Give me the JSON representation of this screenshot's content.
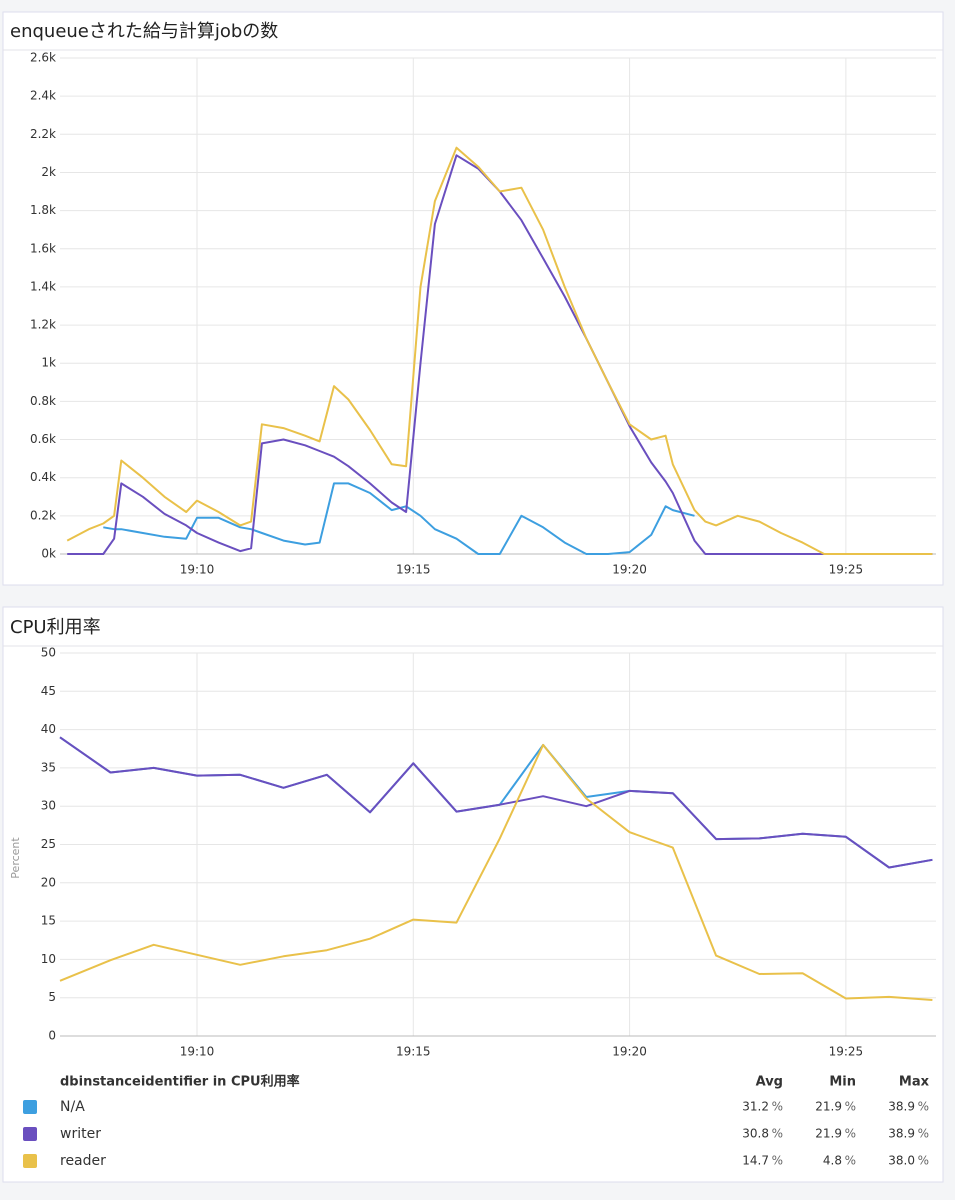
{
  "chart_data": [
    {
      "type": "line",
      "title": "enqueueされた給与計算jobの数",
      "x": [
        "19:07:00",
        "19:07:30",
        "19:07:50",
        "19:08:05",
        "19:08:15",
        "19:08:45",
        "19:09:15",
        "19:09:45",
        "19:10:00",
        "19:10:30",
        "19:11:00",
        "19:11:15",
        "19:11:30",
        "19:12:00",
        "19:12:30",
        "19:12:50",
        "19:13:10",
        "19:13:30",
        "19:14:00",
        "19:14:30",
        "19:14:50",
        "19:15:10",
        "19:15:30",
        "19:16:00",
        "19:16:30",
        "19:17:00",
        "19:17:30",
        "19:18:00",
        "19:18:30",
        "19:19:00",
        "19:19:30",
        "19:20:00",
        "19:20:30",
        "19:20:50",
        "19:21:00",
        "19:21:30",
        "19:21:45",
        "19:22:00",
        "19:22:30",
        "19:23:00",
        "19:23:30",
        "19:24:00",
        "19:24:30",
        "19:25:00",
        "19:25:30",
        "19:26:00",
        "19:26:30",
        "19:27:00"
      ],
      "series": [
        {
          "name": "N/A",
          "color": "#3d9fe0",
          "values": [
            null,
            null,
            140,
            130,
            130,
            110,
            90,
            80,
            190,
            190,
            140,
            130,
            110,
            70,
            50,
            60,
            370,
            370,
            320,
            230,
            250,
            200,
            130,
            80,
            0,
            0,
            200,
            140,
            60,
            0,
            0,
            10,
            100,
            250,
            230,
            200,
            null,
            null,
            null,
            null,
            null,
            null,
            null,
            null,
            null,
            null,
            null,
            null
          ]
        },
        {
          "name": "writer",
          "color": "#6a4fbf",
          "values": [
            0,
            0,
            0,
            80,
            370,
            300,
            210,
            150,
            110,
            60,
            15,
            30,
            580,
            600,
            570,
            540,
            510,
            460,
            370,
            270,
            220,
            1000,
            1730,
            2090,
            2020,
            1900,
            1750,
            1550,
            1350,
            1130,
            900,
            670,
            480,
            380,
            320,
            70,
            0,
            0,
            0,
            0,
            0,
            0,
            0,
            0,
            0,
            0,
            0,
            0
          ]
        },
        {
          "name": "reader",
          "color": "#e9c14a",
          "values": [
            70,
            130,
            160,
            200,
            490,
            400,
            300,
            220,
            280,
            220,
            150,
            170,
            680,
            660,
            620,
            590,
            880,
            810,
            650,
            470,
            460,
            1400,
            1850,
            2130,
            2030,
            1900,
            1920,
            1700,
            1400,
            1130,
            900,
            680,
            600,
            620,
            470,
            230,
            170,
            150,
            200,
            170,
            110,
            60,
            0,
            0,
            0,
            0,
            0,
            0
          ]
        }
      ],
      "xlim": [
        "19:06:50",
        "19:27:05"
      ],
      "xticks": [
        "19:10",
        "19:15",
        "19:20",
        "19:25"
      ],
      "ylim": [
        0,
        2600
      ],
      "yticks": [
        {
          "value": 0,
          "label": "0k"
        },
        {
          "value": 200,
          "label": "0.2k"
        },
        {
          "value": 400,
          "label": "0.4k"
        },
        {
          "value": 600,
          "label": "0.6k"
        },
        {
          "value": 800,
          "label": "0.8k"
        },
        {
          "value": 1000,
          "label": "1k"
        },
        {
          "value": 1200,
          "label": "1.2k"
        },
        {
          "value": 1400,
          "label": "1.4k"
        },
        {
          "value": 1600,
          "label": "1.6k"
        },
        {
          "value": 1800,
          "label": "1.8k"
        },
        {
          "value": 2000,
          "label": "2k"
        },
        {
          "value": 2200,
          "label": "2.2k"
        },
        {
          "value": 2400,
          "label": "2.4k"
        },
        {
          "value": 2600,
          "label": "2.6k"
        }
      ],
      "grid": true
    },
    {
      "type": "line",
      "title": "CPU利用率",
      "ylabel": "Percent",
      "x": [
        "19:06:50",
        "19:08:00",
        "19:09:00",
        "19:10:00",
        "19:11:00",
        "19:12:00",
        "19:13:00",
        "19:14:00",
        "19:15:00",
        "19:16:00",
        "19:17:00",
        "19:18:00",
        "19:19:00",
        "19:20:00",
        "19:21:00",
        "19:22:00",
        "19:23:00",
        "19:24:00",
        "19:25:00",
        "19:26:00",
        "19:27:00"
      ],
      "series": [
        {
          "name": "N/A",
          "color": "#3d9fe0",
          "values": [
            39,
            34.4,
            35,
            34,
            34.1,
            32.4,
            34.1,
            29.2,
            35.6,
            29.3,
            30.2,
            38,
            31.2,
            32,
            31.7,
            25.7,
            25.8,
            26.4,
            26,
            22,
            23
          ]
        },
        {
          "name": "writer",
          "color": "#6a4fbf",
          "values": [
            39,
            34.4,
            35,
            34,
            34.1,
            32.4,
            34.1,
            29.2,
            35.6,
            29.3,
            30.2,
            31.3,
            30,
            32,
            31.7,
            25.7,
            25.8,
            26.4,
            26,
            22,
            23
          ]
        },
        {
          "name": "reader",
          "color": "#e9c14a",
          "values": [
            7.2,
            9.9,
            11.9,
            10.6,
            9.3,
            10.4,
            11.2,
            12.7,
            15.2,
            14.8,
            25.8,
            38,
            31,
            26.6,
            24.6,
            10.5,
            8.1,
            8.2,
            4.9,
            5.1,
            4.7
          ]
        }
      ],
      "xlim": [
        "19:06:50",
        "19:27:05"
      ],
      "xticks": [
        "19:10",
        "19:15",
        "19:20",
        "19:25"
      ],
      "ylim": [
        0,
        50
      ],
      "yticks": [
        0,
        5,
        10,
        15,
        20,
        25,
        30,
        35,
        40,
        45,
        50
      ],
      "grid": true,
      "legend": {
        "title": "dbinstanceidentifier in CPU利用率",
        "columns": [
          "Avg",
          "Min",
          "Max"
        ],
        "unit": "%",
        "stats": [
          [
            31.2,
            21.9,
            38.9
          ],
          [
            30.8,
            21.9,
            38.9
          ],
          [
            14.7,
            4.8,
            38.0
          ]
        ]
      }
    }
  ]
}
